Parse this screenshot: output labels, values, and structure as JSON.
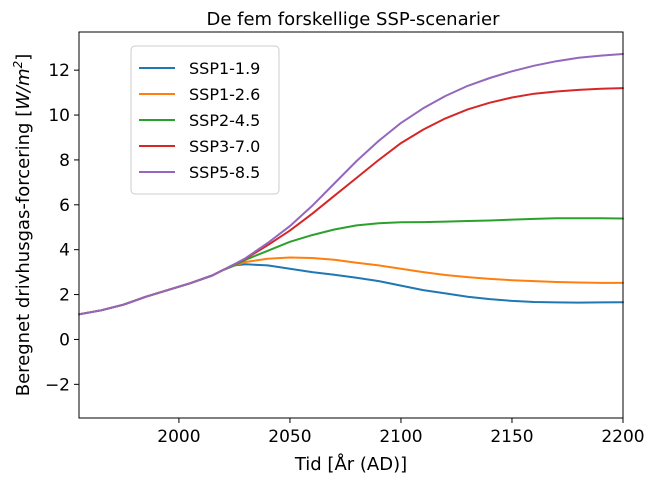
{
  "chart_data": {
    "type": "line",
    "title": "De fem forskellige SSP-scenarier",
    "xlabel": "Tid [År (AD)]",
    "ylabel_prefix": "Beregnet drivhusgas-forcering [",
    "ylabel_unit": "W/m",
    "ylabel_exp": "2",
    "ylabel_suffix": "]",
    "xlim": [
      1955,
      2200
    ],
    "ylim": [
      -3.5,
      13.7
    ],
    "xticks": [
      2000,
      2050,
      2100,
      2150,
      2200
    ],
    "yticks": [
      -2,
      0,
      2,
      4,
      6,
      8,
      10,
      12
    ],
    "xtick_labels": [
      "2000",
      "2050",
      "2100",
      "2150",
      "2200"
    ],
    "ytick_labels": [
      "−2",
      "0",
      "2",
      "4",
      "6",
      "8",
      "10",
      "12"
    ],
    "grid": false,
    "legend_position": "upper-left",
    "series": [
      {
        "name": "SSP1-1.9",
        "color": "#1f77b4",
        "points": [
          [
            1955,
            1.12
          ],
          [
            1965,
            1.3
          ],
          [
            1975,
            1.55
          ],
          [
            1985,
            1.9
          ],
          [
            1995,
            2.2
          ],
          [
            2005,
            2.5
          ],
          [
            2015,
            2.85
          ],
          [
            2020,
            3.1
          ],
          [
            2025,
            3.3
          ],
          [
            2030,
            3.35
          ],
          [
            2040,
            3.3
          ],
          [
            2050,
            3.15
          ],
          [
            2060,
            3.0
          ],
          [
            2070,
            2.88
          ],
          [
            2080,
            2.75
          ],
          [
            2090,
            2.6
          ],
          [
            2100,
            2.4
          ],
          [
            2110,
            2.2
          ],
          [
            2120,
            2.05
          ],
          [
            2130,
            1.9
          ],
          [
            2140,
            1.8
          ],
          [
            2150,
            1.72
          ],
          [
            2160,
            1.67
          ],
          [
            2170,
            1.65
          ],
          [
            2180,
            1.64
          ],
          [
            2190,
            1.65
          ],
          [
            2200,
            1.66
          ]
        ]
      },
      {
        "name": "SSP1-2.6",
        "color": "#ff7f0e",
        "points": [
          [
            1955,
            1.12
          ],
          [
            1965,
            1.3
          ],
          [
            1975,
            1.55
          ],
          [
            1985,
            1.9
          ],
          [
            1995,
            2.2
          ],
          [
            2005,
            2.5
          ],
          [
            2015,
            2.85
          ],
          [
            2020,
            3.1
          ],
          [
            2025,
            3.3
          ],
          [
            2030,
            3.45
          ],
          [
            2040,
            3.6
          ],
          [
            2050,
            3.65
          ],
          [
            2060,
            3.63
          ],
          [
            2070,
            3.55
          ],
          [
            2080,
            3.42
          ],
          [
            2090,
            3.3
          ],
          [
            2100,
            3.15
          ],
          [
            2110,
            3.0
          ],
          [
            2120,
            2.87
          ],
          [
            2130,
            2.78
          ],
          [
            2140,
            2.7
          ],
          [
            2150,
            2.64
          ],
          [
            2160,
            2.6
          ],
          [
            2170,
            2.56
          ],
          [
            2180,
            2.54
          ],
          [
            2190,
            2.52
          ],
          [
            2200,
            2.52
          ]
        ]
      },
      {
        "name": "SSP2-4.5",
        "color": "#2ca02c",
        "points": [
          [
            1955,
            1.12
          ],
          [
            1965,
            1.3
          ],
          [
            1975,
            1.55
          ],
          [
            1985,
            1.9
          ],
          [
            1995,
            2.2
          ],
          [
            2005,
            2.5
          ],
          [
            2015,
            2.85
          ],
          [
            2020,
            3.1
          ],
          [
            2025,
            3.3
          ],
          [
            2030,
            3.55
          ],
          [
            2040,
            3.95
          ],
          [
            2050,
            4.35
          ],
          [
            2060,
            4.65
          ],
          [
            2070,
            4.9
          ],
          [
            2080,
            5.08
          ],
          [
            2090,
            5.18
          ],
          [
            2100,
            5.22
          ],
          [
            2110,
            5.23
          ],
          [
            2120,
            5.25
          ],
          [
            2130,
            5.28
          ],
          [
            2140,
            5.3
          ],
          [
            2150,
            5.34
          ],
          [
            2160,
            5.37
          ],
          [
            2170,
            5.4
          ],
          [
            2180,
            5.4
          ],
          [
            2190,
            5.4
          ],
          [
            2200,
            5.39
          ]
        ]
      },
      {
        "name": "SSP3-7.0",
        "color": "#d62728",
        "points": [
          [
            1955,
            1.12
          ],
          [
            1965,
            1.3
          ],
          [
            1975,
            1.55
          ],
          [
            1985,
            1.9
          ],
          [
            1995,
            2.2
          ],
          [
            2005,
            2.5
          ],
          [
            2015,
            2.85
          ],
          [
            2020,
            3.1
          ],
          [
            2025,
            3.35
          ],
          [
            2030,
            3.6
          ],
          [
            2040,
            4.2
          ],
          [
            2050,
            4.85
          ],
          [
            2060,
            5.6
          ],
          [
            2070,
            6.4
          ],
          [
            2080,
            7.2
          ],
          [
            2090,
            8.0
          ],
          [
            2100,
            8.75
          ],
          [
            2110,
            9.35
          ],
          [
            2120,
            9.85
          ],
          [
            2130,
            10.25
          ],
          [
            2140,
            10.55
          ],
          [
            2150,
            10.78
          ],
          [
            2160,
            10.95
          ],
          [
            2170,
            11.05
          ],
          [
            2180,
            11.12
          ],
          [
            2190,
            11.17
          ],
          [
            2200,
            11.2
          ]
        ]
      },
      {
        "name": "SSP5-8.5",
        "color": "#9467bd",
        "points": [
          [
            1955,
            1.12
          ],
          [
            1965,
            1.3
          ],
          [
            1975,
            1.55
          ],
          [
            1985,
            1.9
          ],
          [
            1995,
            2.2
          ],
          [
            2005,
            2.5
          ],
          [
            2015,
            2.85
          ],
          [
            2020,
            3.1
          ],
          [
            2025,
            3.35
          ],
          [
            2030,
            3.62
          ],
          [
            2040,
            4.3
          ],
          [
            2050,
            5.05
          ],
          [
            2060,
            5.95
          ],
          [
            2070,
            6.95
          ],
          [
            2080,
            7.95
          ],
          [
            2090,
            8.85
          ],
          [
            2100,
            9.65
          ],
          [
            2110,
            10.3
          ],
          [
            2120,
            10.85
          ],
          [
            2130,
            11.3
          ],
          [
            2140,
            11.65
          ],
          [
            2150,
            11.95
          ],
          [
            2160,
            12.2
          ],
          [
            2170,
            12.4
          ],
          [
            2180,
            12.55
          ],
          [
            2190,
            12.65
          ],
          [
            2200,
            12.72
          ]
        ]
      }
    ]
  }
}
